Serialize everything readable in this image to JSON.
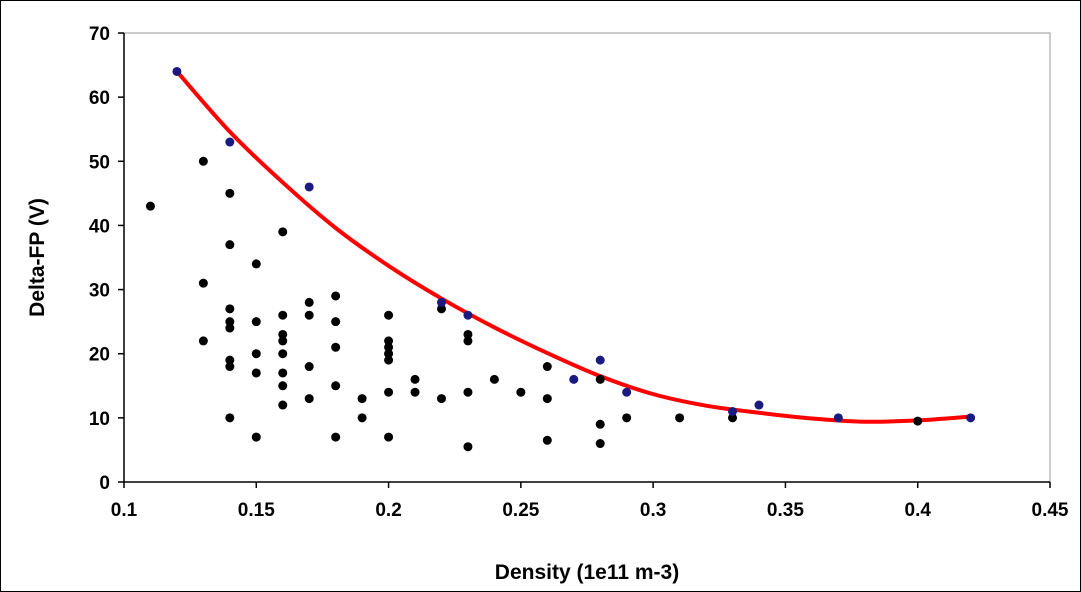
{
  "chart_data": {
    "type": "scatter",
    "title": "",
    "xlabel": "Density (1e11 m-3)",
    "ylabel": "Delta-FP (V)",
    "xlim": [
      0.1,
      0.45
    ],
    "ylim": [
      0,
      70
    ],
    "x_ticks": [
      "0.1",
      "0.15",
      "0.2",
      "0.25",
      "0.3",
      "0.35",
      "0.4",
      "0.45"
    ],
    "y_ticks": [
      "0",
      "10",
      "20",
      "30",
      "40",
      "50",
      "60",
      "70"
    ],
    "grid": false,
    "legend": "none",
    "series": [
      {
        "color": "#000000",
        "marker": "circle",
        "points": [
          [
            0.11,
            43
          ],
          [
            0.13,
            50
          ],
          [
            0.13,
            31
          ],
          [
            0.13,
            22
          ],
          [
            0.14,
            45
          ],
          [
            0.14,
            37
          ],
          [
            0.14,
            27
          ],
          [
            0.14,
            25
          ],
          [
            0.14,
            24
          ],
          [
            0.14,
            19
          ],
          [
            0.14,
            18
          ],
          [
            0.14,
            10
          ],
          [
            0.15,
            34
          ],
          [
            0.15,
            25
          ],
          [
            0.15,
            20
          ],
          [
            0.15,
            17
          ],
          [
            0.15,
            7
          ],
          [
            0.16,
            39
          ],
          [
            0.16,
            26
          ],
          [
            0.16,
            23
          ],
          [
            0.16,
            22
          ],
          [
            0.16,
            20
          ],
          [
            0.16,
            17
          ],
          [
            0.16,
            15
          ],
          [
            0.16,
            12
          ],
          [
            0.17,
            28
          ],
          [
            0.17,
            26
          ],
          [
            0.17,
            18
          ],
          [
            0.17,
            13
          ],
          [
            0.18,
            29
          ],
          [
            0.18,
            25
          ],
          [
            0.18,
            21
          ],
          [
            0.18,
            15
          ],
          [
            0.18,
            7
          ],
          [
            0.19,
            13
          ],
          [
            0.19,
            10
          ],
          [
            0.2,
            26
          ],
          [
            0.2,
            22
          ],
          [
            0.2,
            21
          ],
          [
            0.2,
            20
          ],
          [
            0.2,
            19
          ],
          [
            0.2,
            14
          ],
          [
            0.2,
            7
          ],
          [
            0.21,
            16
          ],
          [
            0.21,
            14
          ],
          [
            0.22,
            27
          ],
          [
            0.22,
            13
          ],
          [
            0.23,
            23
          ],
          [
            0.23,
            22
          ],
          [
            0.23,
            14
          ],
          [
            0.23,
            5.5
          ],
          [
            0.24,
            16
          ],
          [
            0.25,
            14
          ],
          [
            0.26,
            18
          ],
          [
            0.26,
            13
          ],
          [
            0.26,
            6.5
          ],
          [
            0.28,
            16
          ],
          [
            0.28,
            9
          ],
          [
            0.28,
            6
          ],
          [
            0.29,
            10
          ],
          [
            0.31,
            10
          ],
          [
            0.33,
            10
          ],
          [
            0.4,
            9.5
          ]
        ]
      },
      {
        "color": "#1a1a80",
        "marker": "circle",
        "points": [
          [
            0.12,
            64
          ],
          [
            0.14,
            53
          ],
          [
            0.17,
            46
          ],
          [
            0.22,
            28
          ],
          [
            0.23,
            26
          ],
          [
            0.27,
            16
          ],
          [
            0.28,
            19
          ],
          [
            0.29,
            14
          ],
          [
            0.33,
            11
          ],
          [
            0.34,
            12
          ],
          [
            0.37,
            10
          ],
          [
            0.42,
            10
          ]
        ]
      },
      {
        "color": "#ff0000",
        "type": "line",
        "points": [
          [
            0.12,
            64
          ],
          [
            0.14,
            54.6
          ],
          [
            0.16,
            46.7
          ],
          [
            0.18,
            39.6
          ],
          [
            0.2,
            33.7
          ],
          [
            0.22,
            28.6
          ],
          [
            0.24,
            24.1
          ],
          [
            0.26,
            20.1
          ],
          [
            0.28,
            16.5
          ],
          [
            0.3,
            13.7
          ],
          [
            0.32,
            11.9
          ],
          [
            0.34,
            10.8
          ],
          [
            0.36,
            9.9
          ],
          [
            0.38,
            9.4
          ],
          [
            0.4,
            9.6
          ],
          [
            0.42,
            10.2
          ]
        ]
      }
    ]
  }
}
